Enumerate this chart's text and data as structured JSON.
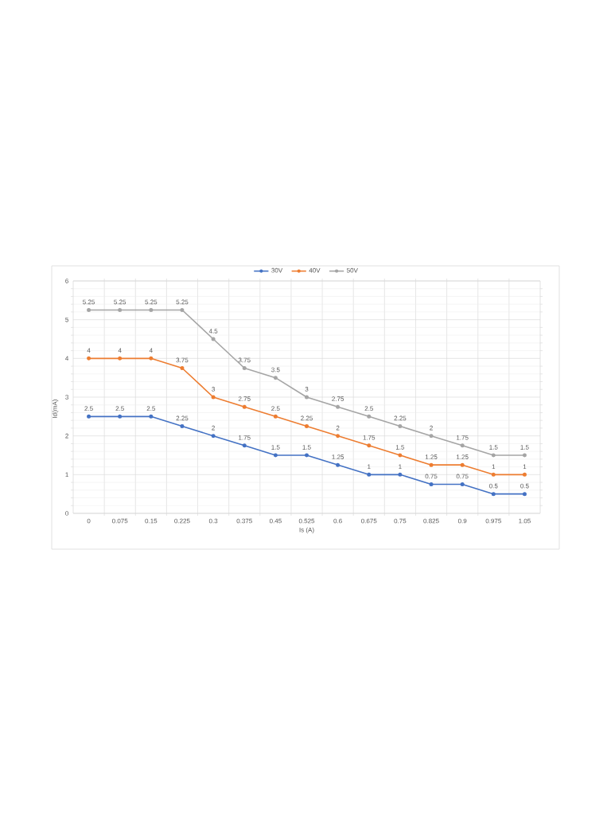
{
  "chart_data": {
    "type": "line",
    "xlabel": "Is (A)",
    "ylabel": "Id(mA)",
    "categories": [
      "0",
      "0.075",
      "0.15",
      "0.225",
      "0.3",
      "0.375",
      "0.45",
      "0.525",
      "0.6",
      "0.675",
      "0.75",
      "0.825",
      "0.9",
      "0.975",
      "1.05"
    ],
    "series": [
      {
        "name": "30V",
        "color": "#4472c4",
        "values": [
          2.5,
          2.5,
          2.5,
          2.25,
          2,
          1.75,
          1.5,
          1.5,
          1.25,
          1,
          1,
          0.75,
          0.75,
          0.5,
          0.5
        ]
      },
      {
        "name": "40V",
        "color": "#ed7d31",
        "values": [
          4,
          4,
          4,
          3.75,
          3,
          2.75,
          2.5,
          2.25,
          2,
          1.75,
          1.5,
          1.25,
          1.25,
          1,
          1
        ]
      },
      {
        "name": "50V",
        "color": "#a5a5a5",
        "values": [
          5.25,
          5.25,
          5.25,
          5.25,
          4.5,
          3.75,
          3.5,
          3,
          2.75,
          2.5,
          2.25,
          2,
          1.75,
          1.5,
          1.5
        ]
      }
    ],
    "ylim": [
      0,
      6
    ],
    "yticks": [
      0,
      1,
      2,
      3,
      4,
      5,
      6
    ],
    "grid": true,
    "legend": "top",
    "marker": "circle",
    "line_style": "solid",
    "data_labels": true
  }
}
